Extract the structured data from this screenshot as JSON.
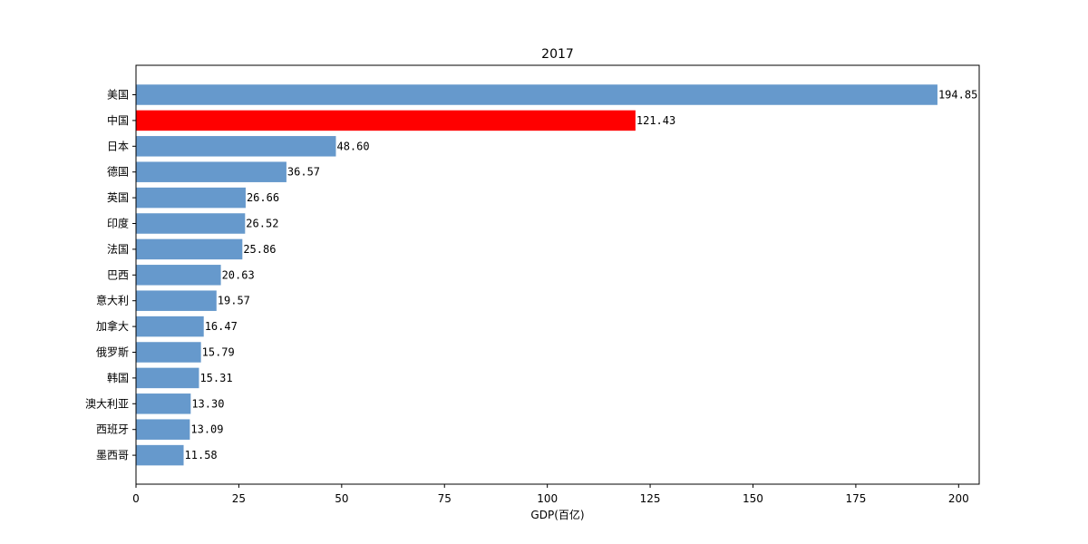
{
  "chart_data": {
    "type": "bar",
    "orientation": "horizontal",
    "title": "2017",
    "xlabel": "GDP(百亿)",
    "ylabel": "",
    "xlim": [
      0,
      205
    ],
    "xticks": [
      0,
      25,
      50,
      75,
      100,
      125,
      150,
      175,
      200
    ],
    "grid": false,
    "categories": [
      "美国",
      "中国",
      "日本",
      "德国",
      "英国",
      "印度",
      "法国",
      "巴西",
      "意大利",
      "加拿大",
      "俄罗斯",
      "韩国",
      "澳大利亚",
      "西班牙",
      "墨西哥"
    ],
    "values": [
      194.85,
      121.43,
      48.6,
      36.57,
      26.66,
      26.52,
      25.86,
      20.63,
      19.57,
      16.47,
      15.79,
      15.31,
      13.3,
      13.09,
      11.58
    ],
    "value_labels": [
      "194.85",
      "121.43",
      "48.60",
      "36.57",
      "26.66",
      "26.52",
      "25.86",
      "20.63",
      "19.57",
      "16.47",
      "15.79",
      "15.31",
      "13.30",
      "13.09",
      "11.58"
    ],
    "colors": {
      "default_bar": "#6699cc",
      "highlight_bar": "#ff0000",
      "highlight_category": "中国",
      "axis": "#000000",
      "text": "#000000"
    }
  }
}
